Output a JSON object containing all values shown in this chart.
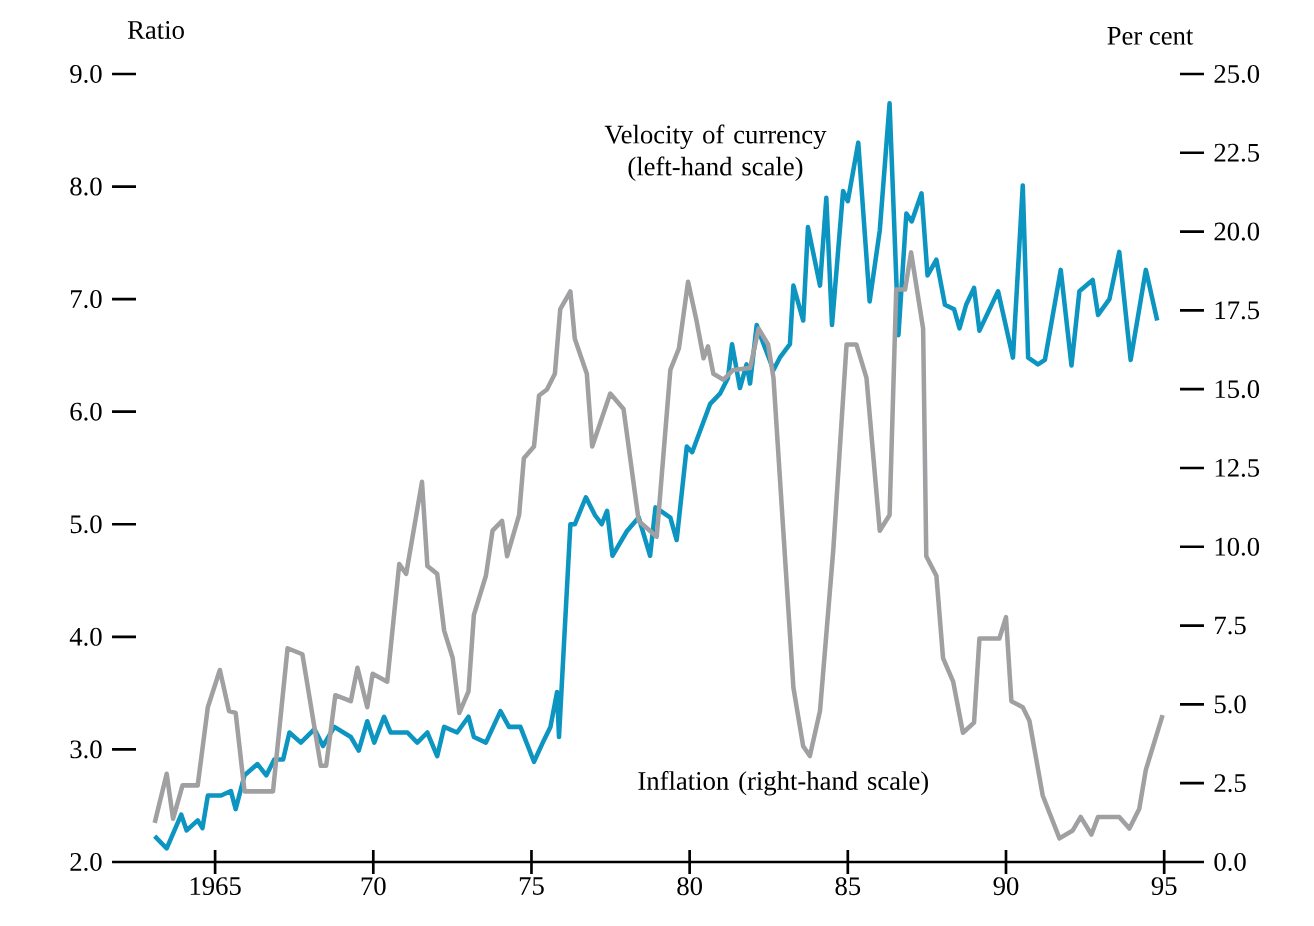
{
  "chart_data": {
    "type": "line",
    "ylabel": "Ratio",
    "y2label": "Per cent",
    "xlim": [
      1962.5,
      1995.5
    ],
    "xticks": [
      1965,
      {
        "value": 1970,
        "label": "70"
      },
      {
        "value": 1975,
        "label": "75"
      },
      {
        "value": 1980,
        "label": "80"
      },
      {
        "value": 1985,
        "label": "85"
      },
      {
        "value": 1990,
        "label": "90"
      },
      {
        "value": 1995,
        "label": "95"
      }
    ],
    "ylim": [
      2,
      9
    ],
    "yticks": [
      {
        "value": 2,
        "label": "2.0"
      },
      {
        "value": 3,
        "label": "3.0"
      },
      {
        "value": 4,
        "label": "4.0"
      },
      {
        "value": 5,
        "label": "5.0"
      },
      {
        "value": 6,
        "label": "6.0"
      },
      {
        "value": 7,
        "label": "7.0"
      },
      {
        "value": 8,
        "label": "8.0"
      },
      {
        "value": 9,
        "label": "9.0"
      }
    ],
    "y2lim": [
      0,
      25
    ],
    "y2ticks": [
      {
        "value": 0,
        "label": "0.0"
      },
      {
        "value": 2.5,
        "label": "2.5"
      },
      {
        "value": 5,
        "label": "5.0"
      },
      {
        "value": 7.5,
        "label": "7.5"
      },
      {
        "value": 10,
        "label": "10.0"
      },
      {
        "value": 12.5,
        "label": "12.5"
      },
      {
        "value": 15,
        "label": "15.0"
      },
      {
        "value": 17.5,
        "label": "17.5"
      },
      {
        "value": 20,
        "label": "20.0"
      },
      {
        "value": 22.5,
        "label": "22.5"
      },
      {
        "value": 25,
        "label": "25.0"
      }
    ],
    "series": [
      {
        "name": "Inflation (right-hand scale)",
        "color": "#a0a0a2",
        "axis": "y2",
        "x": [
          1963.09,
          1963.47,
          1963.67,
          1963.97,
          1964.45,
          1964.77,
          1965.15,
          1965.44,
          1965.65,
          1965.93,
          1966.83,
          1967.29,
          1967.76,
          1968.34,
          1968.51,
          1968.8,
          1969.29,
          1969.5,
          1969.81,
          1969.98,
          1970.44,
          1970.82,
          1971.04,
          1971.54,
          1971.71,
          1972.02,
          1972.24,
          1972.51,
          1972.72,
          1973.01,
          1973.18,
          1973.56,
          1973.77,
          1974.07,
          1974.23,
          1974.61,
          1974.76,
          1975.08,
          1975.24,
          1975.49,
          1975.74,
          1975.91,
          1976.23,
          1976.37,
          1976.75,
          1976.92,
          1977.49,
          1977.91,
          1978.39,
          1978.96,
          1979.39,
          1979.66,
          1979.95,
          1980.22,
          1980.44,
          1980.58,
          1980.75,
          1981.07,
          1981.38,
          1981.91,
          1982.18,
          1982.48,
          1982.65,
          1982.96,
          1983.28,
          1983.59,
          1983.8,
          1984.12,
          1984.54,
          1984.96,
          1985.27,
          1985.59,
          1986.01,
          1986.32,
          1986.53,
          1986.81,
          1987.0,
          1987.38,
          1987.48,
          1987.8,
          1988.01,
          1988.33,
          1988.64,
          1988.99,
          1989.16,
          1989.79,
          1990.0,
          1990.17,
          1990.53,
          1990.74,
          1991.16,
          1991.69,
          1992.11,
          1992.36,
          1992.7,
          1992.91,
          1993.58,
          1993.9,
          1994.21,
          1994.42,
          1994.95
        ],
        "values": [
          1.24,
          2.8,
          1.37,
          2.43,
          2.43,
          4.91,
          6.09,
          4.79,
          4.73,
          2.24,
          2.24,
          6.78,
          6.59,
          3.05,
          3.05,
          5.29,
          5.1,
          6.16,
          4.91,
          5.97,
          5.72,
          9.45,
          9.14,
          12.06,
          9.39,
          9.14,
          7.34,
          6.47,
          4.73,
          5.41,
          7.84,
          9.08,
          10.51,
          10.82,
          9.7,
          11.01,
          12.81,
          13.18,
          14.8,
          14.99,
          15.49,
          17.54,
          18.1,
          16.6,
          15.49,
          13.18,
          14.86,
          14.37,
          10.82,
          10.32,
          15.61,
          16.29,
          18.41,
          17.16,
          15.98,
          16.36,
          15.49,
          15.3,
          15.61,
          15.67,
          16.92,
          16.42,
          15.36,
          10.51,
          5.53,
          3.67,
          3.36,
          4.79,
          9.89,
          16.42,
          16.42,
          15.36,
          10.51,
          11.01,
          18.16,
          18.16,
          19.34,
          16.92,
          9.7,
          9.08,
          6.47,
          5.72,
          4.1,
          4.42,
          7.09,
          7.09,
          7.77,
          5.1,
          4.91,
          4.48,
          2.11,
          0.75,
          1.0,
          1.43,
          0.87,
          1.43,
          1.43,
          1.06,
          1.68,
          2.92,
          4.66
        ]
      },
      {
        "name": "Velocity of currency (left-hand scale)",
        "color": "#0d95c2",
        "x": [
          1963.09,
          1963.47,
          1963.93,
          1964.1,
          1964.45,
          1964.6,
          1964.77,
          1965.19,
          1965.5,
          1965.65,
          1965.93,
          1966.34,
          1966.62,
          1966.87,
          1967.15,
          1967.35,
          1967.71,
          1968.14,
          1968.41,
          1968.77,
          1969.29,
          1969.54,
          1969.81,
          1970.03,
          1970.34,
          1970.55,
          1971.08,
          1971.39,
          1971.71,
          1972.02,
          1972.24,
          1972.65,
          1973.01,
          1973.18,
          1973.56,
          1974.02,
          1974.29,
          1974.65,
          1975.08,
          1975.39,
          1975.6,
          1975.81,
          1975.87,
          1976.23,
          1976.37,
          1976.72,
          1977.01,
          1977.22,
          1977.39,
          1977.56,
          1978.02,
          1978.39,
          1978.75,
          1978.92,
          1979.39,
          1979.59,
          1979.91,
          1980.08,
          1980.65,
          1980.96,
          1981.21,
          1981.34,
          1981.59,
          1981.8,
          1981.91,
          1982.12,
          1982.27,
          1982.65,
          1982.85,
          1983.17,
          1983.28,
          1983.59,
          1983.74,
          1984.12,
          1984.32,
          1984.5,
          1984.85,
          1985.0,
          1985.33,
          1985.69,
          1986.01,
          1986.32,
          1986.6,
          1986.85,
          1987.02,
          1987.33,
          1987.52,
          1987.8,
          1988.07,
          1988.36,
          1988.53,
          1988.74,
          1988.99,
          1989.16,
          1989.75,
          1990.22,
          1990.53,
          1990.7,
          1991.01,
          1991.23,
          1991.73,
          1992.07,
          1992.32,
          1992.74,
          1992.91,
          1993.27,
          1993.58,
          1993.94,
          1994.42,
          1994.78
        ],
        "values": [
          2.23,
          2.12,
          2.42,
          2.28,
          2.37,
          2.3,
          2.59,
          2.59,
          2.63,
          2.47,
          2.77,
          2.87,
          2.77,
          2.91,
          2.91,
          3.15,
          3.06,
          3.18,
          3.03,
          3.2,
          3.11,
          2.99,
          3.25,
          3.06,
          3.29,
          3.15,
          3.15,
          3.06,
          3.15,
          2.94,
          3.2,
          3.15,
          3.29,
          3.11,
          3.06,
          3.34,
          3.2,
          3.2,
          2.89,
          3.08,
          3.2,
          3.51,
          3.11,
          5.0,
          5.0,
          5.24,
          5.08,
          5.0,
          5.12,
          4.72,
          4.94,
          5.06,
          4.72,
          5.15,
          5.06,
          4.86,
          5.69,
          5.64,
          6.07,
          6.16,
          6.3,
          6.6,
          6.21,
          6.42,
          6.25,
          6.77,
          6.65,
          6.37,
          6.48,
          6.6,
          7.12,
          6.81,
          7.64,
          7.12,
          7.9,
          6.77,
          7.96,
          7.87,
          8.39,
          6.98,
          7.61,
          8.74,
          6.68,
          7.76,
          7.69,
          7.94,
          7.21,
          7.35,
          6.95,
          6.91,
          6.74,
          6.95,
          7.1,
          6.72,
          7.07,
          6.48,
          8.01,
          6.48,
          6.42,
          6.46,
          7.26,
          6.41,
          7.07,
          7.17,
          6.86,
          7.0,
          7.42,
          6.46,
          7.26,
          6.81
        ]
      }
    ]
  }
}
